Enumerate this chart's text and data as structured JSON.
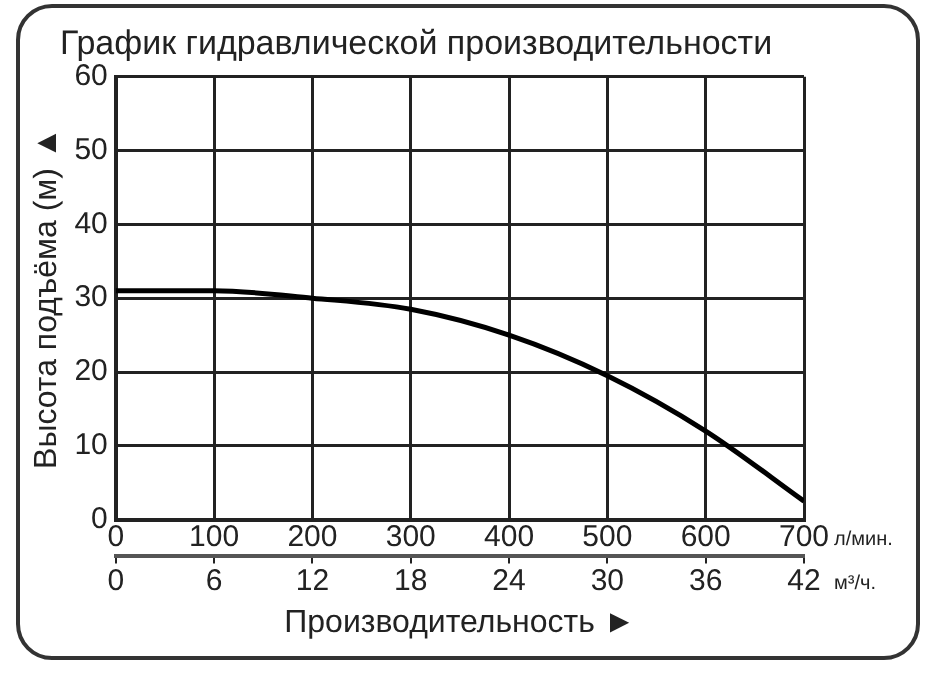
{
  "chart_data": {
    "type": "line",
    "title": "График гидравлической производительности",
    "xlabel": "Производительность ►",
    "ylabel": "Высота подъёма (м) ▲",
    "x": [
      0,
      100,
      200,
      300,
      400,
      500,
      600,
      700
    ],
    "series": [
      {
        "color": "#000000",
        "values": [
          31,
          31,
          30,
          28.5,
          25,
          19.5,
          12,
          2.5
        ]
      }
    ],
    "xlim": [
      0,
      700
    ],
    "xticks": [
      0,
      100,
      200,
      300,
      400,
      500,
      600,
      700
    ],
    "x2lim": [
      0,
      42
    ],
    "x2ticks": [
      0,
      6,
      12,
      18,
      24,
      30,
      36,
      42
    ],
    "ylim": [
      0,
      60
    ],
    "yticks": [
      0,
      10,
      20,
      30,
      40,
      50,
      60
    ],
    "annotations": [
      "л/мин.",
      "м³/ч."
    ],
    "grid": true,
    "legend": false,
    "marker": "none",
    "line_style": "solid"
  }
}
